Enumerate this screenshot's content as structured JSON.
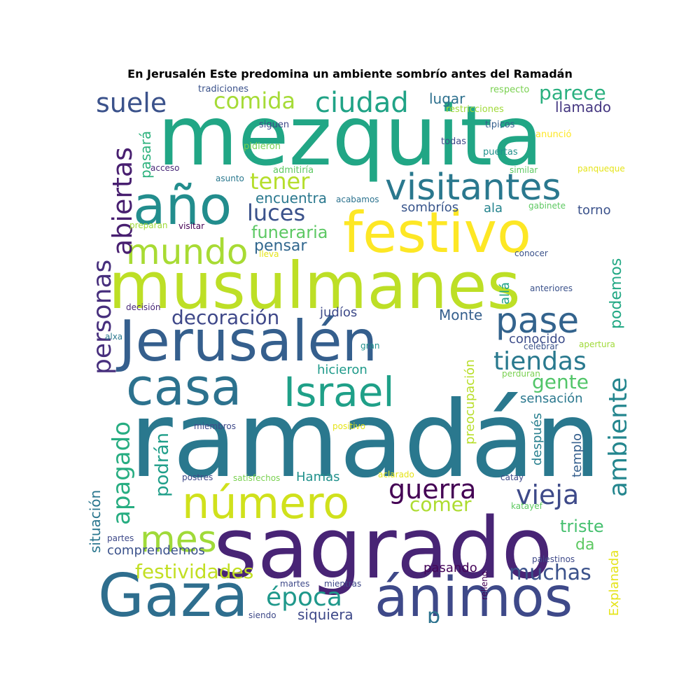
{
  "title": "En Jerusalén Este predomina un ambiente sombrío antes del Ramadán",
  "words": [
    {
      "text": "mezquita",
      "color": "#21a685"
    },
    {
      "text": "ramadán",
      "color": "#2a788e"
    },
    {
      "text": "musulmanes",
      "color": "#bddf26"
    },
    {
      "text": "sagrado",
      "color": "#482475"
    },
    {
      "text": "Jerusalén",
      "color": "#355f8d"
    },
    {
      "text": "festivo",
      "color": "#fde725"
    },
    {
      "text": "Gaza",
      "color": "#2e6e8e"
    },
    {
      "text": "ánimos",
      "color": "#3e4989"
    },
    {
      "text": "casa",
      "color": "#2c728e"
    },
    {
      "text": "año",
      "color": "#228d8d"
    },
    {
      "text": "visitantes",
      "color": "#2a788e"
    },
    {
      "text": "Israel",
      "color": "#1fa088"
    },
    {
      "text": "número",
      "color": "#d0e11c"
    },
    {
      "text": "mundo",
      "color": "#a8db34"
    },
    {
      "text": "mes",
      "color": "#a0da39"
    },
    {
      "text": "pase",
      "color": "#33638d"
    },
    {
      "text": "suele",
      "color": "#3b528b"
    },
    {
      "text": "ciudad",
      "color": "#20a386"
    },
    {
      "text": "comida",
      "color": "#a5db36"
    },
    {
      "text": "abiertas",
      "color": "#481f70"
    },
    {
      "text": "personas",
      "color": "#472f7d"
    },
    {
      "text": "apagado",
      "color": "#27ad81"
    },
    {
      "text": "ambiente",
      "color": "#24868e"
    },
    {
      "text": "guerra",
      "color": "#440154"
    },
    {
      "text": "vieja",
      "color": "#3e4a89"
    },
    {
      "text": "tiendas",
      "color": "#29798e"
    },
    {
      "text": "época",
      "color": "#1f988b"
    },
    {
      "text": "festividades",
      "color": "#c2df23"
    },
    {
      "text": "muchas",
      "color": "#3b528b"
    },
    {
      "text": "parece",
      "color": "#2ab07f"
    },
    {
      "text": "decoración",
      "color": "#3f4889"
    },
    {
      "text": "tener",
      "color": "#b5de2b"
    },
    {
      "text": "luces",
      "color": "#3b528b"
    },
    {
      "text": "funeraria",
      "color": "#5cc863"
    },
    {
      "text": "gente",
      "color": "#52c569"
    },
    {
      "text": "podrán",
      "color": "#1f9e89"
    },
    {
      "text": "situación",
      "color": "#2a768e"
    },
    {
      "text": "pasará",
      "color": "#2db27d"
    },
    {
      "text": "podemos",
      "color": "#22a884"
    },
    {
      "text": "comer",
      "color": "#addc30"
    },
    {
      "text": "triste",
      "color": "#46c06f"
    },
    {
      "text": "pensar",
      "color": "#31678e"
    },
    {
      "text": "comprendemos",
      "color": "#3b528b"
    },
    {
      "text": "siquiera",
      "color": "#3e4989"
    },
    {
      "text": "pasando",
      "color": "#450559"
    },
    {
      "text": "lugar",
      "color": "#2d708e"
    },
    {
      "text": "llamado",
      "color": "#453781"
    },
    {
      "text": "encuentra",
      "color": "#2a788e"
    },
    {
      "text": "sombríos",
      "color": "#39568c"
    },
    {
      "text": "ala",
      "color": "#25848e"
    },
    {
      "text": "torno",
      "color": "#3b528b"
    },
    {
      "text": "Monte",
      "color": "#355f8d"
    },
    {
      "text": "judíos",
      "color": "#3e4a89"
    },
    {
      "text": "allá",
      "color": "#1fa287"
    },
    {
      "text": "conocido",
      "color": "#3d4d8a"
    },
    {
      "text": "hicieron",
      "color": "#1f9a8a"
    },
    {
      "text": "sensación",
      "color": "#2a788e"
    },
    {
      "text": "preocupación",
      "color": "#b8de29"
    },
    {
      "text": "después",
      "color": "#277f8e"
    },
    {
      "text": "templo",
      "color": "#355f8d"
    },
    {
      "text": "Hamas",
      "color": "#21918c"
    },
    {
      "text": "da",
      "color": "#5ec962"
    },
    {
      "text": "p",
      "color": "#2c728e"
    },
    {
      "text": "Explanada",
      "color": "#e5e419"
    },
    {
      "text": "tradiciones",
      "color": "#3b528b"
    },
    {
      "text": "respecto",
      "color": "#7ad151"
    },
    {
      "text": "restricciones",
      "color": "#a0da39"
    },
    {
      "text": "siguen",
      "color": "#3e4989"
    },
    {
      "text": "típicos",
      "color": "#355f8d"
    },
    {
      "text": "anunció",
      "color": "#fde725"
    },
    {
      "text": "pidieron",
      "color": "#7ad151"
    },
    {
      "text": "todas",
      "color": "#3e4989"
    },
    {
      "text": "puertas",
      "color": "#21918c"
    },
    {
      "text": "acceso",
      "color": "#482878"
    },
    {
      "text": "admitiría",
      "color": "#5ec962"
    },
    {
      "text": "similar",
      "color": "#5ec962"
    },
    {
      "text": "panqueque",
      "color": "#e5e419"
    },
    {
      "text": "asunto",
      "color": "#2a788e"
    },
    {
      "text": "acabamos",
      "color": "#2c728e"
    },
    {
      "text": "gabinete",
      "color": "#5ec962"
    },
    {
      "text": "preparan",
      "color": "#a0da39"
    },
    {
      "text": "visitar",
      "color": "#440154"
    },
    {
      "text": "lleva",
      "color": "#e5e419"
    },
    {
      "text": "conocer",
      "color": "#3b528b"
    },
    {
      "text": "anteriores",
      "color": "#3b528b"
    },
    {
      "text": "decisión",
      "color": "#482878"
    },
    {
      "text": "alxa",
      "color": "#2a788e"
    },
    {
      "text": "celebrar",
      "color": "#3b528b"
    },
    {
      "text": "apertura",
      "color": "#a0da39"
    },
    {
      "text": "gran",
      "color": "#21918c"
    },
    {
      "text": "perduran",
      "color": "#7ad151"
    },
    {
      "text": "miembros",
      "color": "#3e4989"
    },
    {
      "text": "positivo",
      "color": "#e5e419"
    },
    {
      "text": "postres",
      "color": "#3e4989"
    },
    {
      "text": "satisfechos",
      "color": "#7ad151"
    },
    {
      "text": "aclarado",
      "color": "#e5e419"
    },
    {
      "text": "catay",
      "color": "#3e4989"
    },
    {
      "text": "katayef",
      "color": "#5ec962"
    },
    {
      "text": "partes",
      "color": "#3e4989"
    },
    {
      "text": "palestinos",
      "color": "#3e4989"
    },
    {
      "text": "martes",
      "color": "#3e4989"
    },
    {
      "text": "mientras",
      "color": "#3e4989"
    },
    {
      "text": "relleno",
      "color": "#440154"
    },
    {
      "text": "siendo",
      "color": "#3e4989"
    }
  ]
}
